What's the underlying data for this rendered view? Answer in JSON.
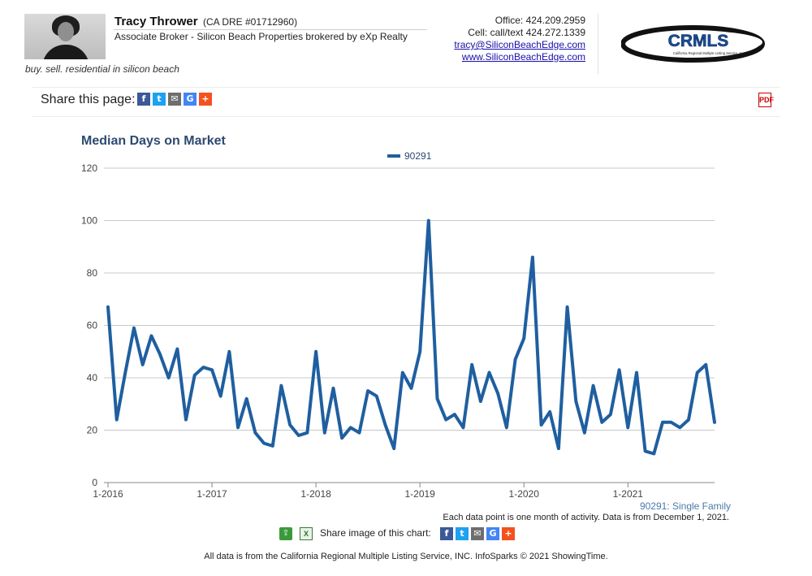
{
  "agent": {
    "name": "Tracy Thrower",
    "dre": "(CA DRE #01712960)",
    "title": "Associate Broker - Silicon Beach Properties brokered by eXp Realty",
    "tagline": "buy. sell. residential in silicon beach"
  },
  "contact": {
    "office": "Office: 424.209.2959",
    "cell": "Cell: call/text 424.272.1339",
    "email": "tracy@SiliconBeachEdge.com",
    "website": "www.SiliconBeachEdge.com"
  },
  "logo": {
    "text": "CRMLS",
    "subtext": "California Regional Multiple Listing Service, Inc."
  },
  "share_bar": {
    "label": "Share this page:",
    "icons": [
      "facebook-icon",
      "twitter-icon",
      "email-icon",
      "google-icon",
      "plus-icon"
    ],
    "pdf_icon": "pdf-icon"
  },
  "chart_data": {
    "type": "line",
    "title": "Median Days on Market",
    "xlabel": "",
    "ylabel": "",
    "ylim": [
      0,
      120
    ],
    "yticks": [
      0,
      20,
      40,
      60,
      80,
      100,
      120
    ],
    "xticks": [
      "1-2016",
      "1-2017",
      "1-2018",
      "1-2019",
      "1-2020",
      "1-2021"
    ],
    "x_start": "1-2016",
    "grid": true,
    "legend": "top-center",
    "series": [
      {
        "name": "90291",
        "color": "#1f5fa0",
        "values": [
          67,
          24,
          42,
          59,
          45,
          56,
          49,
          40,
          51,
          24,
          41,
          44,
          43,
          33,
          50,
          21,
          32,
          19,
          15,
          14,
          37,
          22,
          18,
          19,
          50,
          19,
          36,
          17,
          21,
          19,
          35,
          33,
          22,
          13,
          42,
          36,
          50,
          100,
          32,
          24,
          26,
          21,
          45,
          31,
          42,
          34,
          21,
          47,
          55,
          86,
          22,
          27,
          13,
          67,
          31,
          19,
          37,
          23,
          26,
          43,
          21,
          42,
          12,
          11,
          23,
          23,
          21,
          24,
          42,
          45,
          23
        ]
      }
    ]
  },
  "notes": {
    "series_label": "90291: Single Family",
    "data_note": "Each data point is one month of activity. Data is from December 1, 2021."
  },
  "chart_share": {
    "label": "Share image of this chart:",
    "excel": "X"
  },
  "footer": "All data is from the California Regional Multiple Listing Service, INC. InfoSparks © 2021 ShowingTime."
}
